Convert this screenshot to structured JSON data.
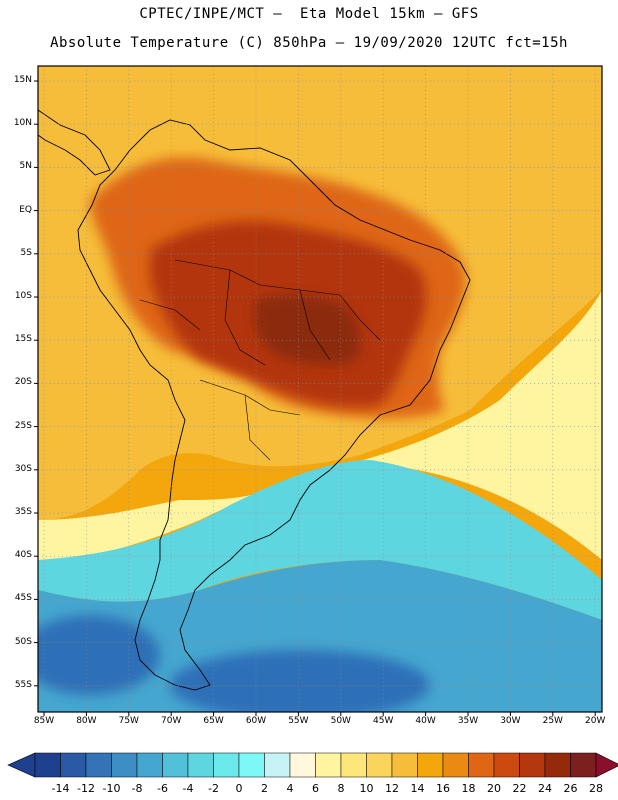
{
  "header": {
    "line1": "CPTEC/INPE/MCT –  Eta Model 15km – GFS",
    "line2": "Absolute Temperature (C) 850hPa – 19/09/2020 12UTC fct=15h"
  },
  "axes": {
    "lat_labels": [
      "15N",
      "10N",
      "5N",
      "EQ",
      "5S",
      "10S",
      "15S",
      "20S",
      "25S",
      "30S",
      "35S",
      "40S",
      "45S",
      "50S",
      "55S"
    ],
    "lon_labels": [
      "85W",
      "80W",
      "75W",
      "70W",
      "65W",
      "60W",
      "55W",
      "50W",
      "45W",
      "40W",
      "35W",
      "30W",
      "25W",
      "20W"
    ]
  },
  "colorbar": {
    "labels": [
      "-14",
      "-12",
      "-10",
      "-8",
      "-6",
      "-4",
      "-2",
      "0",
      "2",
      "4",
      "6",
      "8",
      "10",
      "12",
      "14",
      "16",
      "18",
      "20",
      "22",
      "24",
      "26",
      "28"
    ],
    "colors": [
      "#1f3f8f",
      "#2a5aa6",
      "#3274b5",
      "#3c8ec4",
      "#45a7cf",
      "#52c0d8",
      "#5ed6e0",
      "#6be8ea",
      "#7ef8f6",
      "#c6f4f6",
      "#fff8dc",
      "#fff4a0",
      "#fde67a",
      "#fbd45c",
      "#f6bd3a",
      "#f3a70d",
      "#ea8a12",
      "#de6614",
      "#cc4a10",
      "#b3360c",
      "#942a0a",
      "#7b1f1f",
      "#8c0e2d"
    ]
  },
  "regions": {
    "ocean_south_deep": "#2f70b8",
    "ocean_south": "#45a7cf",
    "ocean_south_light": "#5ed6e0",
    "ocean_mid": "#7ef8f6",
    "ocean_pale": "#fff4a0",
    "ocean_warm": "#f6bd3a",
    "north_atlantic": "#f3a70d",
    "land_warm": "#de6614",
    "land_hot": "#b3360c",
    "land_core": "#8c2a10"
  }
}
